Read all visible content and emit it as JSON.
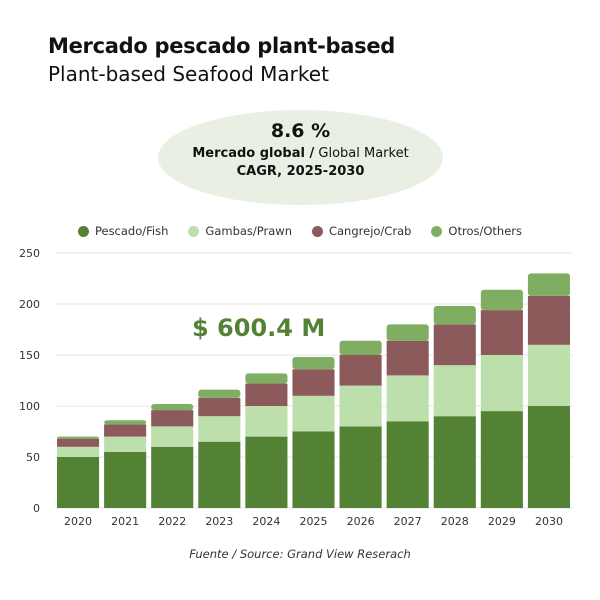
{
  "title": "Mercado pescado plant-based",
  "subtitle": "Plant-based Seafood Market",
  "highlight": {
    "cagr": "8.6 %",
    "market_bold": "Mercado global /",
    "market_rest": " Global Market",
    "period": "CAGR, 2025-2030"
  },
  "annotation": "$ 600.4 M",
  "source": "Fuente / Source: Grand View Reserach",
  "chart_data": {
    "type": "bar",
    "stacked": true,
    "categories": [
      "2020",
      "2021",
      "2022",
      "2023",
      "2024",
      "2025",
      "2026",
      "2027",
      "2028",
      "2029",
      "2030"
    ],
    "ylim": [
      0,
      250
    ],
    "yticks": [
      0,
      50,
      100,
      150,
      200,
      250
    ],
    "grid": true,
    "legend": "top",
    "series": [
      {
        "name": "Pescado/Fish",
        "color": "#548235",
        "values": [
          50,
          55,
          60,
          65,
          70,
          75,
          80,
          85,
          90,
          95,
          100
        ]
      },
      {
        "name": "Gambas/Prawn",
        "color": "#bddfab",
        "values": [
          10,
          15,
          20,
          25,
          30,
          35,
          40,
          45,
          50,
          55,
          60
        ]
      },
      {
        "name": "Cangrejo/Crab",
        "color": "#8c5a5a",
        "values": [
          8,
          12,
          16,
          18,
          22,
          26,
          30,
          34,
          40,
          44,
          48
        ]
      },
      {
        "name": "Otros/Others",
        "color": "#7fae62",
        "values": [
          2,
          4,
          6,
          8,
          10,
          12,
          14,
          16,
          18,
          20,
          22
        ]
      }
    ]
  }
}
